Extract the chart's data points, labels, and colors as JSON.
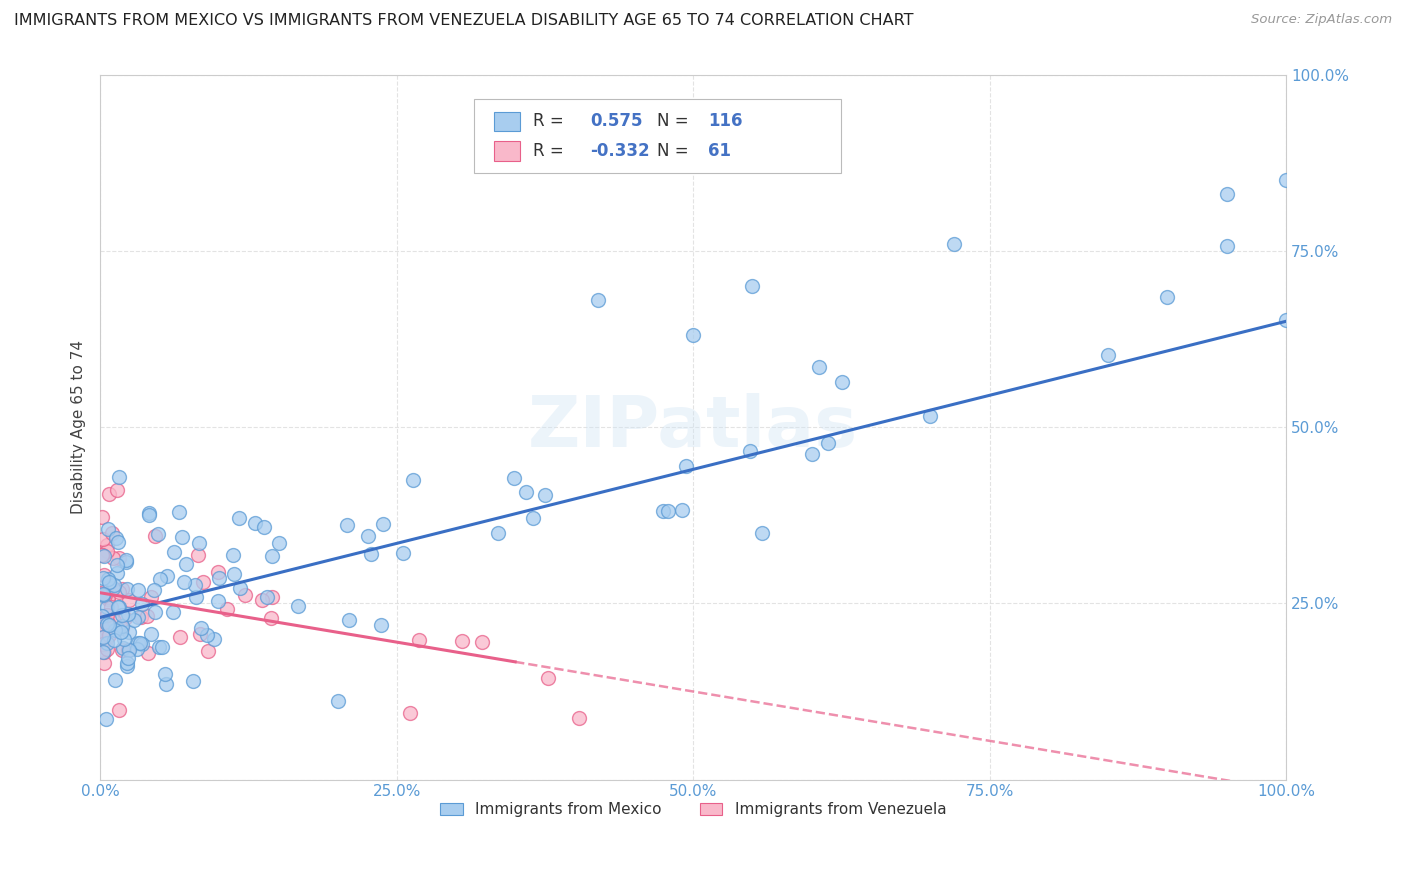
{
  "title": "IMMIGRANTS FROM MEXICO VS IMMIGRANTS FROM VENEZUELA DISABILITY AGE 65 TO 74 CORRELATION CHART",
  "source": "Source: ZipAtlas.com",
  "ylabel": "Disability Age 65 to 74",
  "xlim": [
    0,
    1
  ],
  "ylim": [
    0,
    1
  ],
  "xticks": [
    0.0,
    0.25,
    0.5,
    0.75,
    1.0
  ],
  "yticks": [
    0.0,
    0.25,
    0.5,
    0.75,
    1.0
  ],
  "mexico_color": "#A8CDEF",
  "venezuela_color": "#F9B8CA",
  "mexico_edge_color": "#5B9BD5",
  "venezuela_edge_color": "#E8608A",
  "trend_mexico_color": "#3A6FC4",
  "trend_venezuela_color": "#E8608A",
  "R_mexico": 0.575,
  "N_mexico": 116,
  "R_venezuela": -0.332,
  "N_venezuela": 61,
  "watermark": "ZIPatlas",
  "legend_mexico": "Immigrants from Mexico",
  "legend_venezuela": "Immigrants from Venezuela",
  "mex_intercept": 0.23,
  "mex_slope": 0.42,
  "ven_intercept": 0.265,
  "ven_slope": -0.28
}
